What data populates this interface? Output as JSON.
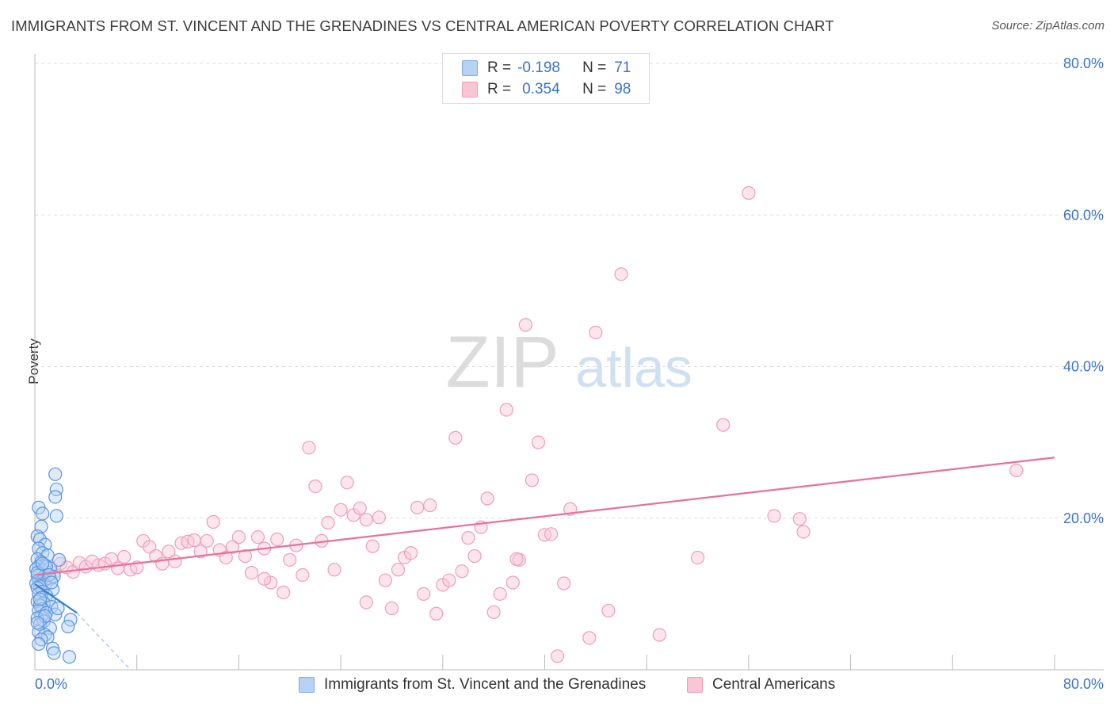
{
  "title": "IMMIGRANTS FROM ST. VINCENT AND THE GRENADINES VS CENTRAL AMERICAN POVERTY CORRELATION CHART",
  "source": "Source: ZipAtlas.com",
  "watermark": {
    "zip": "ZIP",
    "atlas": "atlas"
  },
  "stats": [
    {
      "r_label": "R =",
      "r_value": "-0.198",
      "n_label": "N =",
      "n_value": "71",
      "color": "#b7d2f4"
    },
    {
      "r_label": "R =",
      "r_value": "0.354",
      "n_label": "N =",
      "n_value": "98",
      "color": "#f9c6d6"
    }
  ],
  "legend": [
    {
      "label": "Immigrants from St. Vincent and the Grenadines",
      "color": "#b7d2f4"
    },
    {
      "label": "Central Americans",
      "color": "#f9c6d6"
    }
  ],
  "chart_data": {
    "type": "scatter",
    "title": "IMMIGRANTS FROM ST. VINCENT AND THE GRENADINES VS CENTRAL AMERICAN POVERTY CORRELATION CHART",
    "xlabel": "",
    "ylabel": "Poverty",
    "xlim": [
      0,
      80
    ],
    "ylim": [
      0,
      80
    ],
    "x_tick_labels": [
      "0.0%",
      "80.0%"
    ],
    "y_tick_labels": [
      "20.0%",
      "40.0%",
      "60.0%",
      "80.0%"
    ],
    "y_ticks": [
      20,
      40,
      60,
      80
    ],
    "grid": true,
    "legend_position": "bottom",
    "series": [
      {
        "name": "Immigrants from St. Vincent and the Grenadines",
        "color": "#5b95dd",
        "trend": {
          "x": [
            0,
            3.3
          ],
          "y": [
            11.3,
            7.5
          ],
          "dashed_extension_x": [
            3.3,
            7.5
          ],
          "dashed_extension_y": [
            7.5,
            0
          ]
        },
        "points": [
          [
            0.3,
            21.4
          ],
          [
            0.6,
            20.6
          ],
          [
            0.5,
            18.9
          ],
          [
            0.2,
            17.6
          ],
          [
            0.4,
            17.2
          ],
          [
            0.8,
            16.5
          ],
          [
            0.3,
            16.0
          ],
          [
            0.6,
            15.4
          ],
          [
            1.0,
            15.1
          ],
          [
            0.2,
            14.6
          ],
          [
            0.5,
            14.2
          ],
          [
            0.8,
            13.8
          ],
          [
            0.3,
            13.6
          ],
          [
            0.1,
            13.3
          ],
          [
            0.6,
            13.1
          ],
          [
            0.9,
            12.9
          ],
          [
            0.4,
            12.6
          ],
          [
            0.2,
            12.4
          ],
          [
            0.7,
            12.2
          ],
          [
            1.2,
            12.0
          ],
          [
            0.3,
            11.8
          ],
          [
            0.5,
            11.6
          ],
          [
            0.1,
            11.4
          ],
          [
            0.8,
            11.2
          ],
          [
            0.4,
            11.0
          ],
          [
            0.2,
            10.8
          ],
          [
            1.4,
            10.6
          ],
          [
            0.6,
            10.3
          ],
          [
            0.3,
            10.0
          ],
          [
            0.9,
            9.8
          ],
          [
            0.5,
            9.5
          ],
          [
            1.1,
            9.2
          ],
          [
            0.2,
            9.0
          ],
          [
            0.7,
            8.8
          ],
          [
            0.4,
            8.5
          ],
          [
            1.3,
            8.3
          ],
          [
            0.6,
            8.0
          ],
          [
            0.3,
            7.8
          ],
          [
            0.9,
            7.5
          ],
          [
            1.6,
            7.3
          ],
          [
            0.5,
            7.0
          ],
          [
            0.2,
            6.8
          ],
          [
            2.8,
            6.6
          ],
          [
            0.7,
            6.4
          ],
          [
            0.4,
            6.0
          ],
          [
            2.6,
            5.7
          ],
          [
            1.2,
            5.5
          ],
          [
            0.3,
            5.0
          ],
          [
            0.8,
            4.6
          ],
          [
            1.0,
            4.3
          ],
          [
            0.5,
            4.0
          ],
          [
            0.3,
            3.4
          ],
          [
            1.4,
            2.8
          ],
          [
            1.5,
            2.2
          ],
          [
            2.7,
            1.7
          ],
          [
            1.6,
            25.8
          ],
          [
            1.7,
            23.8
          ],
          [
            1.6,
            22.8
          ],
          [
            1.7,
            20.3
          ],
          [
            1.2,
            13.4
          ],
          [
            1.5,
            12.3
          ],
          [
            1.9,
            14.5
          ],
          [
            0.9,
            13.6
          ],
          [
            1.1,
            12.5
          ],
          [
            0.2,
            12.8
          ],
          [
            0.6,
            14.0
          ],
          [
            1.3,
            11.5
          ],
          [
            0.4,
            9.3
          ],
          [
            0.8,
            7.1
          ],
          [
            0.2,
            6.2
          ],
          [
            1.8,
            8.1
          ]
        ]
      },
      {
        "name": "Central Americans",
        "color": "#ee86a8",
        "trend": {
          "x": [
            0,
            80
          ],
          "y": [
            12.5,
            28.0
          ]
        },
        "points": [
          [
            0.8,
            13.2
          ],
          [
            1.5,
            12.8
          ],
          [
            2.0,
            14.0
          ],
          [
            2.5,
            13.5
          ],
          [
            3.0,
            12.9
          ],
          [
            3.5,
            14.1
          ],
          [
            4.0,
            13.6
          ],
          [
            4.5,
            14.3
          ],
          [
            5.0,
            13.8
          ],
          [
            5.5,
            14.0
          ],
          [
            6.0,
            14.6
          ],
          [
            6.5,
            13.4
          ],
          [
            7.0,
            14.9
          ],
          [
            7.5,
            13.2
          ],
          [
            8.0,
            13.5
          ],
          [
            8.5,
            17.0
          ],
          [
            9.0,
            16.2
          ],
          [
            9.5,
            15.0
          ],
          [
            10.0,
            14.0
          ],
          [
            10.5,
            15.6
          ],
          [
            11.0,
            14.3
          ],
          [
            11.5,
            16.7
          ],
          [
            12.0,
            16.9
          ],
          [
            12.5,
            17.1
          ],
          [
            13.0,
            15.6
          ],
          [
            13.5,
            17.0
          ],
          [
            14.0,
            19.5
          ],
          [
            14.5,
            15.8
          ],
          [
            15.0,
            14.8
          ],
          [
            15.5,
            16.2
          ],
          [
            16.0,
            17.5
          ],
          [
            16.5,
            15.0
          ],
          [
            17.0,
            12.8
          ],
          [
            17.5,
            17.5
          ],
          [
            18.0,
            16.0
          ],
          [
            18.5,
            11.5
          ],
          [
            19.0,
            17.2
          ],
          [
            19.5,
            10.2
          ],
          [
            20.0,
            14.5
          ],
          [
            20.5,
            16.4
          ],
          [
            21.0,
            12.5
          ],
          [
            21.5,
            29.3
          ],
          [
            22.0,
            24.2
          ],
          [
            22.5,
            17.0
          ],
          [
            23.0,
            19.4
          ],
          [
            23.5,
            13.2
          ],
          [
            24.0,
            21.1
          ],
          [
            24.5,
            24.7
          ],
          [
            25.0,
            20.4
          ],
          [
            25.5,
            21.3
          ],
          [
            26.0,
            19.8
          ],
          [
            26.5,
            16.3
          ],
          [
            27.0,
            20.1
          ],
          [
            27.5,
            11.8
          ],
          [
            28.0,
            8.1
          ],
          [
            28.5,
            13.2
          ],
          [
            29.0,
            14.8
          ],
          [
            29.5,
            15.4
          ],
          [
            30.0,
            21.4
          ],
          [
            30.5,
            10.0
          ],
          [
            31.0,
            21.7
          ],
          [
            31.5,
            7.4
          ],
          [
            32.0,
            11.2
          ],
          [
            32.5,
            11.8
          ],
          [
            33.0,
            30.6
          ],
          [
            33.5,
            13.0
          ],
          [
            34.0,
            17.4
          ],
          [
            34.5,
            15.0
          ],
          [
            35.0,
            18.8
          ],
          [
            35.5,
            22.6
          ],
          [
            36.0,
            7.6
          ],
          [
            36.5,
            10.0
          ],
          [
            37.0,
            34.3
          ],
          [
            37.5,
            11.5
          ],
          [
            38.0,
            14.5
          ],
          [
            38.5,
            45.5
          ],
          [
            39.0,
            25.0
          ],
          [
            39.5,
            30.0
          ],
          [
            40.0,
            17.8
          ],
          [
            40.5,
            17.9
          ],
          [
            41.0,
            1.8
          ],
          [
            41.5,
            11.4
          ],
          [
            42.0,
            21.2
          ],
          [
            43.5,
            4.2
          ],
          [
            44.0,
            44.5
          ],
          [
            45.0,
            7.8
          ],
          [
            46.0,
            52.2
          ],
          [
            49.0,
            4.6
          ],
          [
            52.0,
            14.8
          ],
          [
            54.0,
            32.3
          ],
          [
            56.0,
            62.9
          ],
          [
            60.0,
            19.9
          ],
          [
            60.3,
            18.2
          ],
          [
            58.0,
            20.3
          ],
          [
            77.0,
            26.3
          ],
          [
            37.8,
            14.6
          ],
          [
            26.0,
            8.9
          ],
          [
            18.0,
            12.0
          ]
        ]
      }
    ]
  }
}
